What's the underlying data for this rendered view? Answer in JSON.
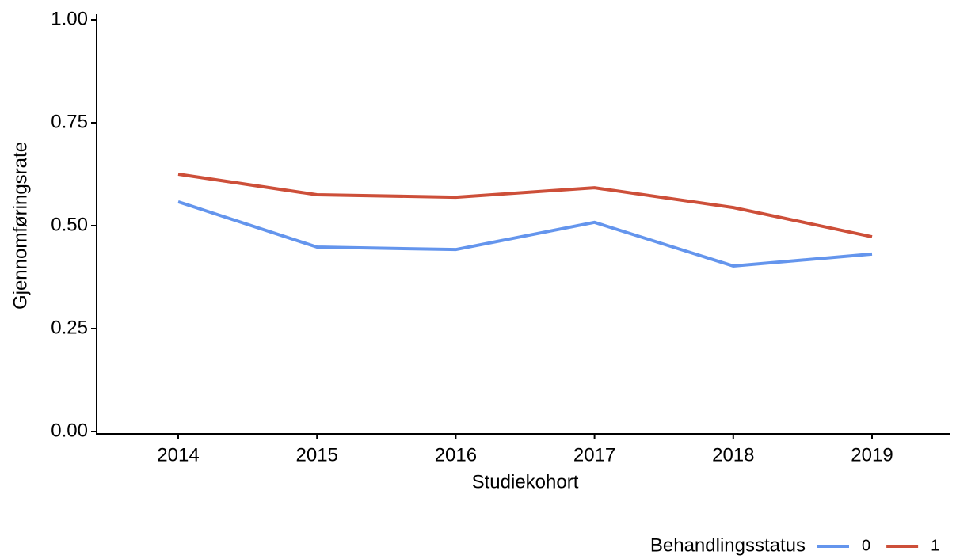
{
  "chart_data": {
    "type": "line",
    "x_label": "Studiekohort",
    "y_label": "Gjennomføringsrate",
    "categories": [
      "2014",
      "2015",
      "2016",
      "2017",
      "2018",
      "2019"
    ],
    "series": [
      {
        "name": "0",
        "color": "#6495ed",
        "values": [
          0.558,
          0.448,
          0.442,
          0.508,
          0.402,
          0.431
        ]
      },
      {
        "name": "1",
        "color": "#cd4f39",
        "values": [
          0.625,
          0.575,
          0.569,
          0.592,
          0.544,
          0.473
        ]
      }
    ],
    "legend_title": "Behandlingsstatus",
    "legend_position": "bottom-right",
    "ylim": [
      0,
      1
    ],
    "yticks": [
      {
        "value": 0,
        "label": "0.00"
      },
      0.25,
      {
        "value": 0.5,
        "label": "0.50"
      },
      0.75,
      {
        "value": 1,
        "label": "1.00"
      }
    ],
    "grid": false
  }
}
